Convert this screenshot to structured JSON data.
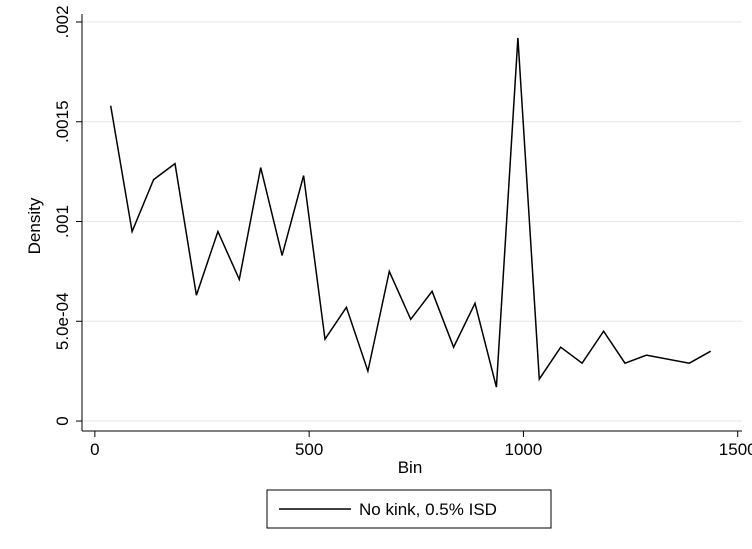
{
  "chart_data": {
    "type": "line",
    "xlabel": "Bin",
    "ylabel": "Density",
    "xlim": [
      -30,
      1510
    ],
    "ylim": [
      -5e-05,
      0.00204
    ],
    "x_ticks": [
      {
        "value": 0,
        "label": "0"
      },
      {
        "value": 500,
        "label": "500"
      },
      {
        "value": 1000,
        "label": "1000"
      },
      {
        "value": 1500,
        "label": "1500"
      }
    ],
    "y_ticks": [
      {
        "value": 0,
        "label": "0"
      },
      {
        "value": 0.0005,
        "label": "5.0e-04"
      },
      {
        "value": 0.001,
        "label": ".001"
      },
      {
        "value": 0.0015,
        "label": ".0015"
      },
      {
        "value": 0.002,
        "label": ".002"
      }
    ],
    "grid": "horizontal",
    "legend_position": "bottom",
    "series": [
      {
        "name": "No kink, 0.5% ISD",
        "color": "#000000",
        "x": [
          37,
          87,
          137,
          187,
          237,
          287,
          337,
          387,
          437,
          487,
          537,
          587,
          637,
          687,
          737,
          787,
          837,
          887,
          937,
          987,
          1037,
          1087,
          1137,
          1187,
          1237,
          1287,
          1387,
          1437
        ],
        "y": [
          0.00158,
          0.00095,
          0.00121,
          0.00129,
          0.00063,
          0.00095,
          0.00071,
          0.00127,
          0.00083,
          0.00123,
          0.00041,
          0.00057,
          0.00025,
          0.00075,
          0.00051,
          0.00065,
          0.00037,
          0.00059,
          0.00017,
          0.00192,
          0.00021,
          0.00037,
          0.00029,
          0.00045,
          0.00029,
          0.00033,
          0.00029,
          0.00035
        ]
      }
    ]
  }
}
